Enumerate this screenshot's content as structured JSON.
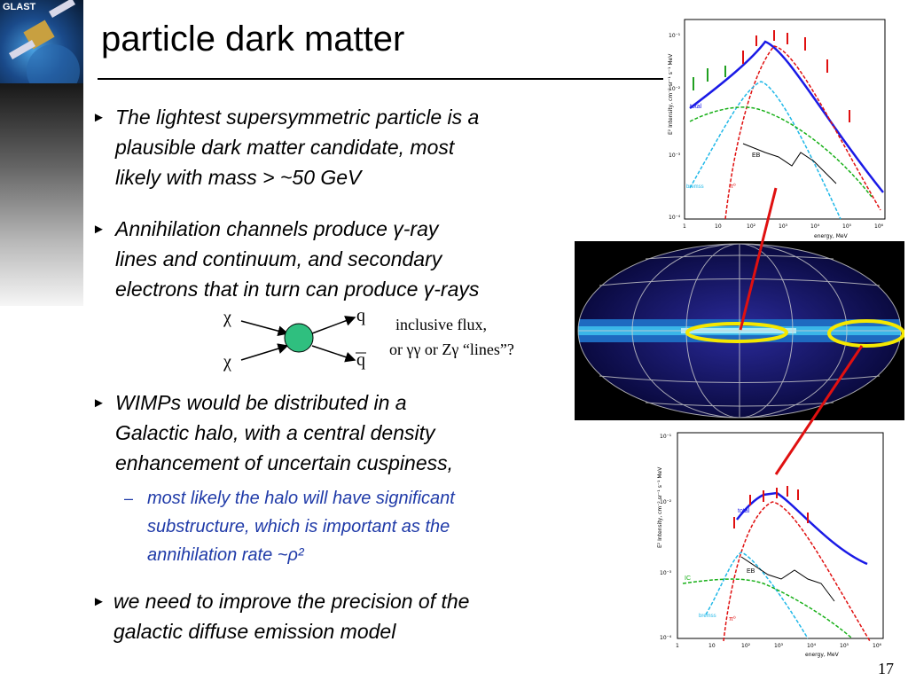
{
  "header": {
    "logo_text": "GLAST",
    "title": "particle dark matter"
  },
  "bullets": [
    {
      "lines": [
        "The lightest supersymmetric particle is a",
        "plausible dark matter candidate, most",
        "likely with mass > ~50 GeV"
      ]
    },
    {
      "lines": [
        "Annihilation channels produce γ-ray",
        "lines and continuum, and secondary",
        "electrons that in turn can produce γ-rays"
      ]
    },
    {
      "lines": [
        "WIMPs would be distributed in a",
        "Galactic halo, with a central density",
        "enhancement of uncertain cuspiness,"
      ]
    },
    {
      "lines": [
        "we need to improve the precision of the",
        "galactic diffuse emission model"
      ]
    }
  ],
  "sub_bullet": {
    "dash": "–",
    "lines": [
      "most likely the halo will have significant",
      "substructure, which is important as the",
      "annihilation rate ~ρ²"
    ]
  },
  "diagram": {
    "in1": "χ",
    "in2": "χ",
    "out1": "q",
    "out2": "q",
    "note1": "inclusive flux,",
    "note2": "or γγ or Zγ “lines”?"
  },
  "spectrum_top": {
    "ylabel": "E² Intensity, cm⁻² sr⁻¹ s⁻¹ MeV",
    "xlabel": "energy, MeV",
    "labels": [
      "total",
      "EB",
      "bremss",
      "π⁰"
    ],
    "yticks": [
      "10⁻¹",
      "10⁻²",
      "10⁻³",
      "10⁻⁴"
    ],
    "xticks": [
      "1",
      "10",
      "10²",
      "10³",
      "10⁴",
      "10⁵",
      "10⁶"
    ]
  },
  "spectrum_bottom": {
    "ylabel": "E² Intensity, cm⁻² sr⁻¹ s⁻¹ MeV",
    "xlabel": "energy, MeV",
    "labels": [
      "total",
      "EB",
      "IC",
      "bremss",
      "π⁰"
    ],
    "yticks": [
      "10⁻¹",
      "10⁻²",
      "10⁻³",
      "10⁻⁴"
    ],
    "xticks": [
      "1",
      "10",
      "10²",
      "10³",
      "10⁴",
      "10⁵",
      "10⁶"
    ]
  },
  "page_number": "17"
}
